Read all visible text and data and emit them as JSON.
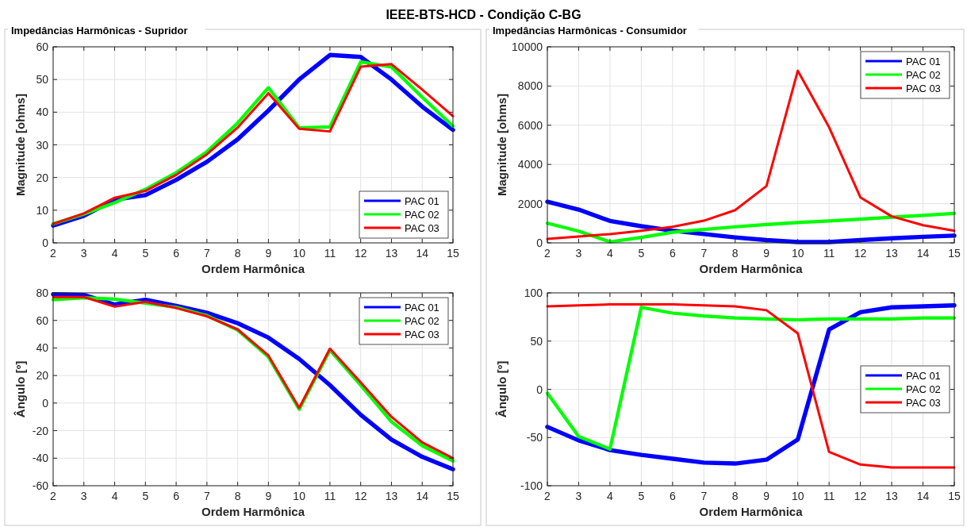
{
  "chart_data": [
    {
      "type": "line",
      "title": "Impedâncias Harmônicas - Supridor",
      "annotations": [
        "IEEE-BTS-HCD - Condição C-BG"
      ],
      "xlabel": "Ordem Harmônica",
      "ylabel": "Magnitude [ohms]",
      "x": [
        2,
        3,
        4,
        5,
        6,
        7,
        8,
        9,
        10,
        11,
        12,
        13,
        14,
        15
      ],
      "xlim": [
        2,
        15
      ],
      "xticks": [
        2,
        3,
        4,
        5,
        6,
        7,
        8,
        9,
        10,
        11,
        12,
        13,
        14,
        15
      ],
      "ylim": [
        0,
        60
      ],
      "yticks": [
        0,
        10,
        20,
        30,
        40,
        50,
        60
      ],
      "grid": true,
      "legend": "bottom right",
      "series": [
        {
          "name": "PAC 01",
          "color": "#0000ff",
          "values": [
            5.3,
            8.3,
            13.2,
            14.6,
            19.3,
            24.8,
            31.7,
            40.5,
            50,
            57.5,
            56.9,
            50,
            41.7,
            34.6
          ]
        },
        {
          "name": "PAC 02",
          "color": "#00ff00",
          "values": [
            5.8,
            8.8,
            12.3,
            16.4,
            21.5,
            27.9,
            36.7,
            47.5,
            35.2,
            35.5,
            55.4,
            53.8,
            44.6,
            35.7
          ]
        },
        {
          "name": "PAC 03",
          "color": "#ff0000",
          "values": [
            5.8,
            9.0,
            13.8,
            15.9,
            20.8,
            27.1,
            35.3,
            45.8,
            34.9,
            34.1,
            53.9,
            54.7,
            46.9,
            38.8
          ]
        }
      ]
    },
    {
      "type": "line",
      "title": "Impedâncias Harmônicas - Consumidor",
      "xlabel": "Ordem Harmônica",
      "ylabel": "Magnitude [ohms]",
      "x": [
        2,
        3,
        4,
        5,
        6,
        7,
        8,
        9,
        10,
        11,
        12,
        13,
        14,
        15
      ],
      "xlim": [
        2,
        15
      ],
      "xticks": [
        2,
        3,
        4,
        5,
        6,
        7,
        8,
        9,
        10,
        11,
        12,
        13,
        14,
        15
      ],
      "ylim": [
        0,
        10000
      ],
      "yticks": [
        0,
        2000,
        4000,
        6000,
        8000,
        10000
      ],
      "grid": true,
      "legend": "top right",
      "series": [
        {
          "name": "PAC 01",
          "color": "#0000ff",
          "values": [
            2100,
            1700,
            1120,
            850,
            620,
            450,
            280,
            140,
            40,
            40,
            140,
            230,
            310,
            370
          ]
        },
        {
          "name": "PAC 02",
          "color": "#00ff00",
          "values": [
            1000,
            600,
            50,
            280,
            540,
            680,
            820,
            940,
            1040,
            1120,
            1210,
            1310,
            1400,
            1500
          ]
        },
        {
          "name": "PAC 03",
          "color": "#ff0000",
          "values": [
            200,
            320,
            450,
            620,
            820,
            1130,
            1670,
            2900,
            8780,
            5900,
            2320,
            1350,
            900,
            620
          ]
        }
      ]
    },
    {
      "type": "line",
      "xlabel": "Ordem Harmônica",
      "ylabel": "Ângulo [º]",
      "x": [
        2,
        3,
        4,
        5,
        6,
        7,
        8,
        9,
        10,
        11,
        12,
        13,
        14,
        15
      ],
      "xlim": [
        2,
        15
      ],
      "xticks": [
        2,
        3,
        4,
        5,
        6,
        7,
        8,
        9,
        10,
        11,
        12,
        13,
        14,
        15
      ],
      "ylim": [
        -60,
        80
      ],
      "yticks": [
        -60,
        -40,
        -20,
        0,
        20,
        40,
        60,
        80
      ],
      "grid": true,
      "legend": "top right",
      "series": [
        {
          "name": "PAC 01",
          "color": "#0000ff",
          "values": [
            79,
            78.5,
            71.5,
            75,
            70.5,
            65.5,
            58,
            47.5,
            32,
            13,
            -8.5,
            -26.5,
            -39,
            -48
          ]
        },
        {
          "name": "PAC 02",
          "color": "#00ff00",
          "values": [
            75,
            76.5,
            75.5,
            72.5,
            69.5,
            63.5,
            53,
            33.5,
            -4.5,
            38.5,
            13,
            -13.5,
            -31,
            -42
          ]
        },
        {
          "name": "PAC 03",
          "color": "#ff0000",
          "values": [
            77,
            77,
            70,
            73.5,
            69,
            63,
            53.5,
            34.5,
            -3.5,
            39.5,
            15,
            -10,
            -28.5,
            -40
          ]
        }
      ]
    },
    {
      "type": "line",
      "xlabel": "Ordem Harmônica",
      "ylabel": "Ângulo [º]",
      "x": [
        2,
        3,
        4,
        5,
        6,
        7,
        8,
        9,
        10,
        11,
        12,
        13,
        14,
        15
      ],
      "xlim": [
        2,
        15
      ],
      "xticks": [
        2,
        3,
        4,
        5,
        6,
        7,
        8,
        9,
        10,
        11,
        12,
        13,
        14,
        15
      ],
      "ylim": [
        -100,
        100
      ],
      "yticks": [
        -100,
        -50,
        0,
        50,
        100
      ],
      "grid": true,
      "legend": "right",
      "series": [
        {
          "name": "PAC 01",
          "color": "#0000ff",
          "values": [
            -39,
            -53,
            -63,
            -68,
            -72,
            -76,
            -77,
            -73,
            -52,
            62,
            80,
            85,
            86,
            87
          ]
        },
        {
          "name": "PAC 02",
          "color": "#00ff00",
          "values": [
            -4,
            -49,
            -62,
            85,
            79,
            76,
            74,
            73,
            72,
            73,
            73,
            73,
            74,
            74
          ]
        },
        {
          "name": "PAC 03",
          "color": "#ff0000",
          "values": [
            86,
            87,
            88,
            88,
            88,
            87,
            86,
            82,
            58,
            -65,
            -78,
            -81,
            -81,
            -81
          ]
        }
      ]
    }
  ]
}
